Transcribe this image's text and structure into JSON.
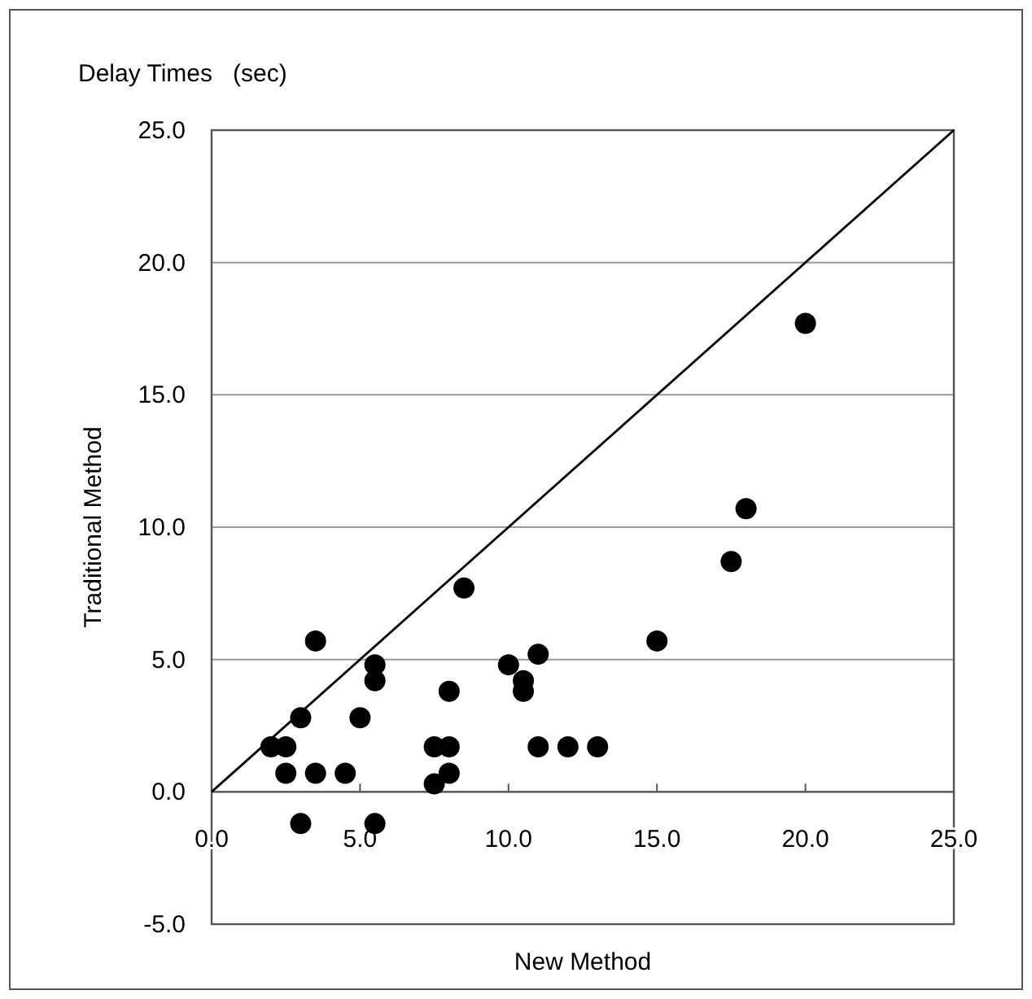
{
  "chart_data": {
    "type": "scatter",
    "title": "Delay Times   (sec)",
    "xlabel": "New Method",
    "ylabel": "Traditional Method",
    "xlim": [
      0,
      25
    ],
    "ylim": [
      -5,
      25
    ],
    "xticks": [
      {
        "value": 0,
        "label": "0.0"
      },
      {
        "value": 5,
        "label": "5.0"
      },
      {
        "value": 10,
        "label": "10.0"
      },
      {
        "value": 15,
        "label": "15.0"
      },
      {
        "value": 20,
        "label": "20.0"
      },
      {
        "value": 25,
        "label": "25.0"
      }
    ],
    "yticks": [
      {
        "value": -5,
        "label": "-5.0"
      },
      {
        "value": 0,
        "label": "0.0"
      },
      {
        "value": 5,
        "label": "5.0"
      },
      {
        "value": 10,
        "label": "10.0"
      },
      {
        "value": 15,
        "label": "15.0"
      },
      {
        "value": 20,
        "label": "20.0"
      },
      {
        "value": 25,
        "label": "25.0"
      }
    ],
    "grid": "y",
    "marker": "circle",
    "series": [
      {
        "color": "#000000",
        "x": [
          2,
          2.5,
          2.5,
          3,
          3.5,
          3.5,
          3,
          4.5,
          5,
          5.5,
          5.5,
          5.5,
          7.5,
          7.5,
          8,
          8,
          8,
          8.5,
          10,
          10.5,
          10.5,
          11,
          11,
          12,
          13,
          15,
          17.5,
          18,
          20
        ],
        "values": [
          1.7,
          1.7,
          0.7,
          2.8,
          5.7,
          0.7,
          -1.2,
          0.7,
          2.8,
          4.8,
          4.2,
          -1.2,
          1.7,
          0.3,
          1.7,
          0.7,
          3.8,
          7.7,
          4.8,
          4.2,
          3.8,
          5.2,
          1.7,
          1.7,
          1.7,
          5.7,
          8.7,
          10.7,
          17.7
        ]
      },
      {
        "type": "line",
        "color": "#000000",
        "marker": "none",
        "line_style": "solid",
        "x": [
          0,
          25
        ],
        "values": [
          0,
          25
        ]
      }
    ]
  }
}
